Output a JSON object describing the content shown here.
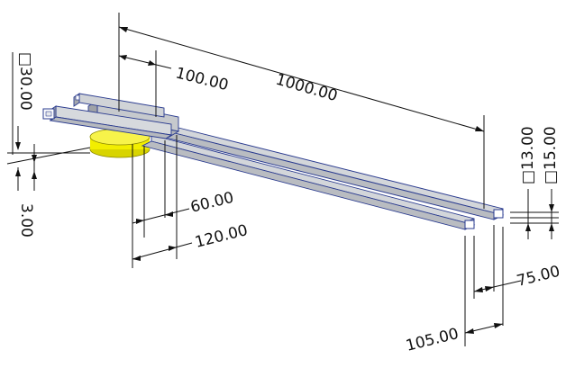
{
  "drawing": {
    "dimensions": {
      "overall_length": "1000.00",
      "offset_top": "100.00",
      "square_main": "□30.00",
      "thickness": "3.00",
      "width_60": "60.00",
      "width_120": "120.00",
      "square_13": "□13.00",
      "square_15": "□15.00",
      "spacing_75": "75.00",
      "spacing_105": "105.00"
    },
    "colors": {
      "tube_fill": "#c9ccd0",
      "tube_edge": "#2a3b8f",
      "base_disc": "#f2ee00"
    }
  }
}
